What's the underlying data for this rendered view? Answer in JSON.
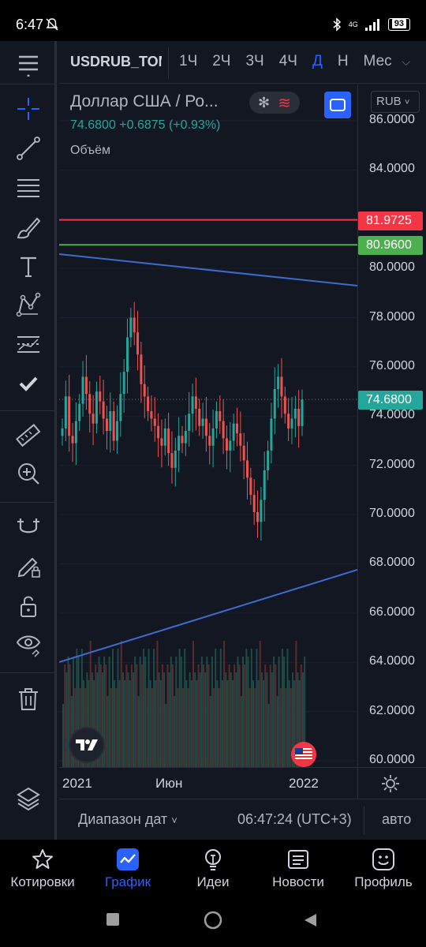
{
  "status_bar": {
    "time": "6:47",
    "network": "4G",
    "battery": "93"
  },
  "topbar": {
    "symbol": "USDRUB_TOM",
    "intervals": [
      "1Ч",
      "2Ч",
      "3Ч",
      "4Ч",
      "Д",
      "Н",
      "Мес"
    ],
    "active_interval": "Д"
  },
  "legend": {
    "title": "Доллар США / Ро...",
    "price_line": "74.6800  +0.6875 (+0.93%)",
    "volume_label": "Объём"
  },
  "price_axis": {
    "currency": "RUB",
    "ticks": [
      "86.0000",
      "84.0000",
      "80.0000",
      "78.0000",
      "76.0000",
      "74.0000",
      "72.0000",
      "70.0000",
      "68.0000",
      "66.0000",
      "64.0000",
      "62.0000",
      "60.0000"
    ],
    "tags": {
      "red": "81.9725",
      "green": "80.9600",
      "current": "74.6800"
    }
  },
  "time_axis": {
    "labels": [
      "2021",
      "Июн",
      "2022"
    ]
  },
  "range_bar": {
    "range_label": "Диапазон дат",
    "clock": "06:47:24 (UTC+3)",
    "scale_mode": "авто"
  },
  "bottom_nav": [
    {
      "label": "Котировки",
      "icon": "star-icon"
    },
    {
      "label": "График",
      "icon": "chart-icon"
    },
    {
      "label": "Идеи",
      "icon": "lightbulb-icon"
    },
    {
      "label": "Новости",
      "icon": "news-icon"
    },
    {
      "label": "Профиль",
      "icon": "smiley-icon"
    }
  ],
  "colors": {
    "background": "#131722",
    "accent": "#2962ff",
    "up": "#26a69a",
    "down": "#ef5350",
    "red_line": "#f23645",
    "green_line": "#4caf50",
    "trend_line": "#3d6bce"
  },
  "chart_data": {
    "type": "candlestick",
    "symbol": "USDRUB_TOM",
    "y_range": [
      60,
      86
    ],
    "horizontal_lines": [
      81.9725,
      80.96
    ],
    "last_price": 74.68,
    "change": "+0.6875 (+0.93%)",
    "close_series": [
      73.5,
      74.8,
      73.2,
      72.9,
      73.8,
      74.5,
      75.6,
      74.9,
      74.1,
      73.7,
      75.0,
      74.6,
      73.9,
      73.4,
      74.2,
      73.0,
      73.8,
      74.9,
      75.8,
      77.2,
      78.0,
      77.4,
      76.5,
      75.3,
      74.8,
      74.2,
      73.9,
      73.6,
      73.1,
      72.8,
      73.5,
      72.5,
      71.9,
      72.6,
      73.2,
      72.9,
      73.4,
      74.1,
      74.8,
      74.3,
      73.6,
      73.9,
      73.2,
      72.8,
      73.5,
      74.2,
      73.8,
      73.1,
      72.6,
      73.0,
      73.7,
      73.3,
      72.8,
      72.2,
      71.5,
      70.8,
      70.1,
      69.7,
      70.6,
      71.8,
      72.6,
      73.9,
      75.1,
      75.6,
      74.8,
      74.1,
      73.5,
      73.9,
      74.3,
      73.6,
      74.68
    ]
  }
}
